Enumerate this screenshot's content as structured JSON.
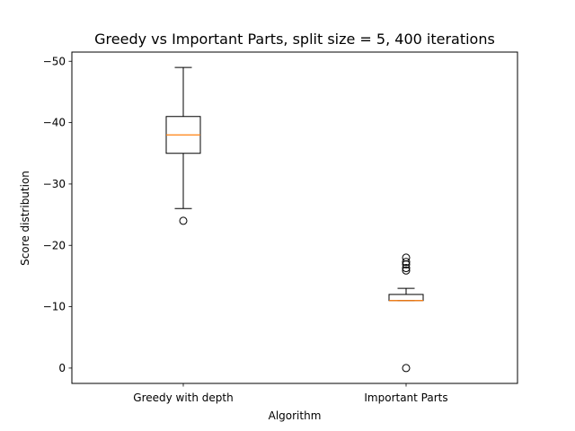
{
  "chart_data": {
    "type": "box",
    "title": "Greedy vs Important Parts, split size = 5, 400 iterations",
    "xlabel": "Algorithm",
    "ylabel": "Score distribution",
    "ylim": [
      2.5,
      -51.5
    ],
    "y_inverted": true,
    "yticks": [
      {
        "value": -50,
        "label": "−50"
      },
      {
        "value": -40,
        "label": "−40"
      },
      {
        "value": -30,
        "label": "−30"
      },
      {
        "value": -20,
        "label": "−20"
      },
      {
        "value": -10,
        "label": "−10"
      },
      {
        "value": 0,
        "label": "0"
      }
    ],
    "categories": [
      "Greedy with depth",
      "Important Parts"
    ],
    "boxes": [
      {
        "category": "Greedy with depth",
        "whisker_low": -49,
        "q1": -41,
        "median": -38,
        "q3": -35,
        "whisker_high": -26,
        "outliers": [
          -24
        ]
      },
      {
        "category": "Important Parts",
        "whisker_low": -13,
        "q1": -12,
        "median": -11,
        "q3": -11,
        "whisker_high": -11,
        "outliers": [
          -18,
          -17.3,
          -16.9,
          -16.3,
          -15.9,
          0
        ]
      }
    ],
    "grid": false,
    "colors": {
      "box": "#000000",
      "median": "#ff7f0e",
      "outlier": "#000000"
    }
  }
}
